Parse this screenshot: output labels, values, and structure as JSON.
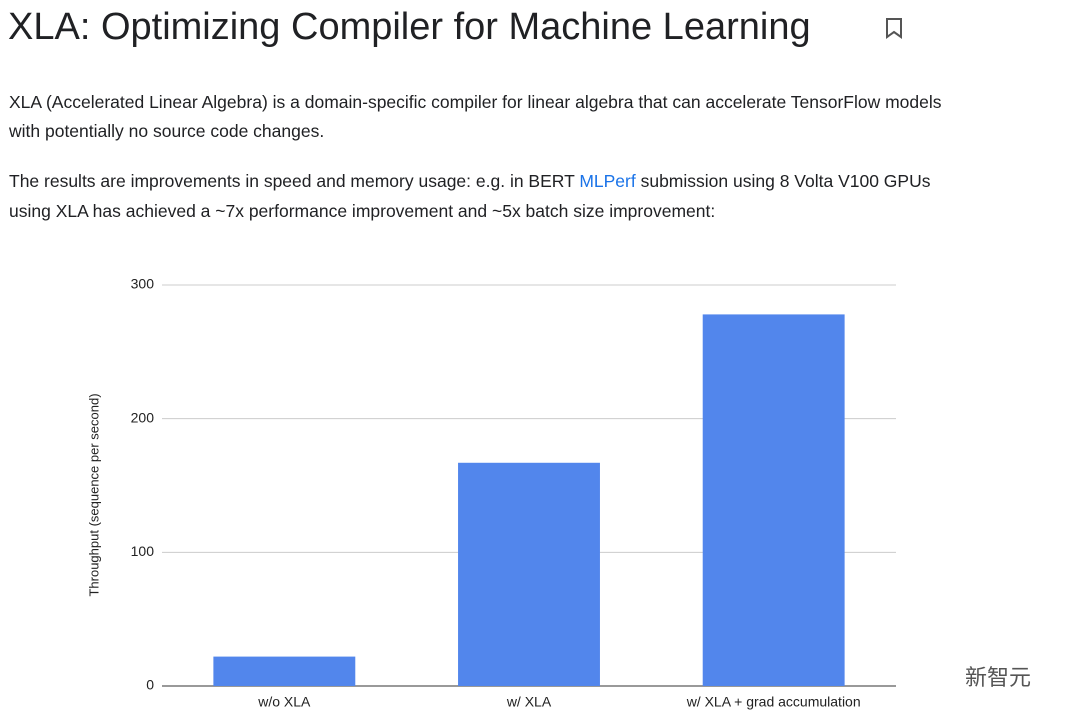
{
  "header": {
    "title": "XLA: Optimizing Compiler for Machine Learning"
  },
  "paragraphs": [
    {
      "lines": [
        "XLA (Accelerated Linear Algebra) is a domain-specific compiler for linear algebra that can accelerate TensorFlow models",
        "with potentially no source code changes."
      ]
    },
    {
      "line1_before": "The results are improvements in speed and memory usage: e.g. in BERT ",
      "line1_link": "MLPerf",
      "line1_after": " submission using 8 Volta V100 GPUs",
      "line2": "using XLA has achieved a ~7x performance improvement and ~5x batch size improvement:"
    }
  ],
  "watermark": "新智元",
  "chart_data": {
    "type": "bar",
    "y_label": "Throughput (sequence per second)",
    "categories": [
      "w/o XLA",
      "w/ XLA",
      "w/ XLA + grad accumulation"
    ],
    "values": [
      22,
      167,
      278
    ],
    "color": "#5286ec",
    "ylim": [
      0,
      300
    ],
    "yticks": [
      0,
      100,
      200,
      300
    ],
    "grid": true
  }
}
